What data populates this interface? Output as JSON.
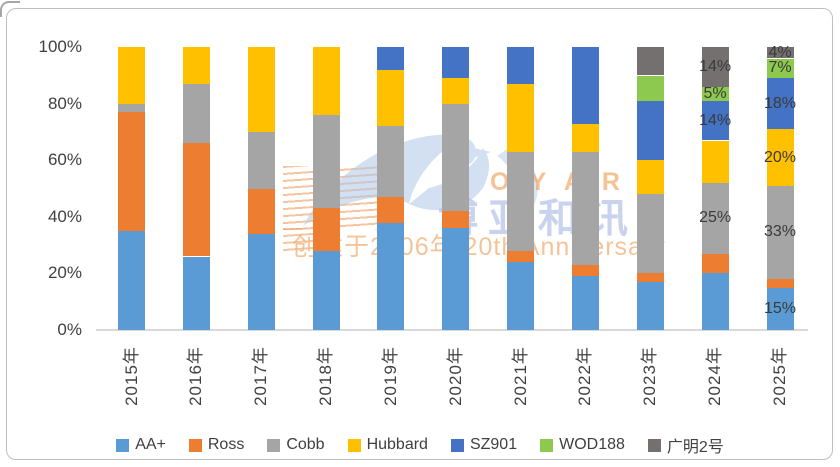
{
  "watermark": {
    "brand_en": "BOYAR",
    "brand_cn": "博亚和讯",
    "tagline": "创建于2006年 20th Anniversary"
  },
  "chart_data": {
    "type": "bar",
    "subtype": "100%-stacked-column",
    "title": "",
    "xlabel": "",
    "ylabel": "",
    "ylim": [
      0,
      100
    ],
    "grid": false,
    "legend_position": "bottom",
    "categories": [
      "2015年",
      "2016年",
      "2017年",
      "2018年",
      "2019年",
      "2020年",
      "2021年",
      "2022年",
      "2023年",
      "2024年",
      "2025年"
    ],
    "y_ticks": [
      {
        "label": "0%",
        "value": 0
      },
      {
        "label": "20%",
        "value": 20
      },
      {
        "label": "40%",
        "value": 40
      },
      {
        "label": "60%",
        "value": 60
      },
      {
        "label": "80%",
        "value": 80
      },
      {
        "label": "100%",
        "value": 100
      }
    ],
    "series": [
      {
        "name": "AA+",
        "color": "#5B9BD5",
        "values": [
          35,
          26,
          34,
          28,
          38,
          36,
          24,
          19,
          17,
          20,
          15
        ]
      },
      {
        "name": "Ross",
        "color": "#ED7D31",
        "values": [
          42,
          40,
          16,
          15,
          9,
          6,
          4,
          4,
          3,
          7,
          3
        ]
      },
      {
        "name": "Cobb",
        "color": "#A5A5A5",
        "values": [
          3,
          21,
          20,
          33,
          25,
          38,
          35,
          40,
          28,
          25,
          33
        ]
      },
      {
        "name": "Hubbard",
        "color": "#FFC000",
        "values": [
          20,
          13,
          30,
          24,
          20,
          9,
          24,
          10,
          12,
          15,
          20
        ]
      },
      {
        "name": "SZ901",
        "color": "#4472C4",
        "values": [
          0,
          0,
          0,
          0,
          8,
          11,
          13,
          27,
          21,
          14,
          18
        ]
      },
      {
        "name": "WOD188",
        "color": "#8DC94F",
        "values": [
          0,
          0,
          0,
          0,
          0,
          0,
          0,
          0,
          9,
          5,
          7
        ]
      },
      {
        "name": "广明2号",
        "color": "#757070",
        "values": [
          0,
          0,
          0,
          0,
          0,
          0,
          0,
          0,
          10,
          14,
          4
        ]
      }
    ],
    "data_labels": [
      {
        "category": "2024年",
        "series": [
          "Cobb",
          "SZ901",
          "WOD188",
          "广明2号"
        ],
        "labels": [
          "25%",
          "14%",
          "5%",
          "14%"
        ]
      },
      {
        "category": "2025年",
        "series": [
          "AA+",
          "Cobb",
          "Hubbard",
          "SZ901",
          "WOD188",
          "广明2号"
        ],
        "labels": [
          "15%",
          "33%",
          "20%",
          "18%",
          "7%",
          "4%"
        ]
      }
    ]
  }
}
